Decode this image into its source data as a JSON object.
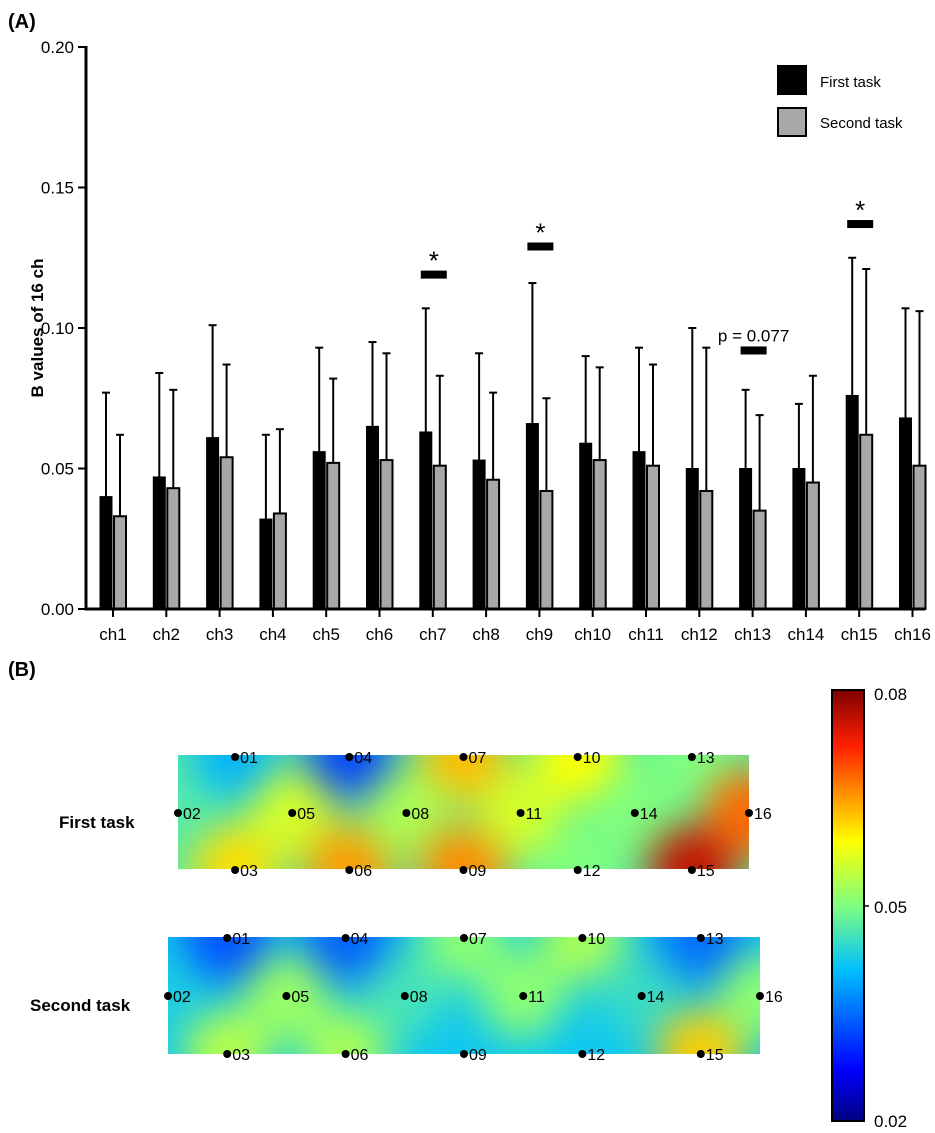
{
  "chart_data": [
    {
      "type": "bar",
      "panel_label": "(A)",
      "ylabel": "B values of 16 ch",
      "ylim": [
        0,
        0.2
      ],
      "yticks": [
        "0.00",
        "0.05",
        "0.10",
        "0.15",
        "0.20"
      ],
      "categories": [
        "ch1",
        "ch2",
        "ch3",
        "ch4",
        "ch5",
        "ch6",
        "ch7",
        "ch8",
        "ch9",
        "ch10",
        "ch11",
        "ch12",
        "ch13",
        "ch14",
        "ch15",
        "ch16"
      ],
      "series": [
        {
          "name": "First task",
          "color": "#000000",
          "values": [
            0.04,
            0.047,
            0.061,
            0.032,
            0.056,
            0.065,
            0.063,
            0.053,
            0.066,
            0.059,
            0.056,
            0.05,
            0.05,
            0.05,
            0.076,
            0.068
          ],
          "errors": [
            0.037,
            0.037,
            0.04,
            0.03,
            0.037,
            0.03,
            0.044,
            0.038,
            0.05,
            0.031,
            0.037,
            0.05,
            0.028,
            0.023,
            0.049,
            0.039
          ]
        },
        {
          "name": "Second task",
          "color": "#a8a8a8",
          "values": [
            0.033,
            0.043,
            0.054,
            0.034,
            0.052,
            0.053,
            0.051,
            0.046,
            0.042,
            0.053,
            0.051,
            0.042,
            0.035,
            0.045,
            0.062,
            0.051
          ],
          "errors": [
            0.029,
            0.035,
            0.033,
            0.03,
            0.03,
            0.038,
            0.032,
            0.031,
            0.033,
            0.033,
            0.036,
            0.051,
            0.034,
            0.038,
            0.059,
            0.055
          ]
        }
      ],
      "significance": [
        {
          "channel": "ch7",
          "label": "*",
          "y": 0.119
        },
        {
          "channel": "ch9",
          "label": "*",
          "y": 0.129
        },
        {
          "channel": "ch13",
          "label": "p = 0.077",
          "y": 0.092
        },
        {
          "channel": "ch15",
          "label": "*",
          "y": 0.137
        }
      ],
      "legend_position": "top-right"
    },
    {
      "type": "heatmap",
      "panel_label": "(B)",
      "rows": [
        "First task",
        "Second task"
      ],
      "channel_labels": [
        "01",
        "02",
        "03",
        "04",
        "05",
        "06",
        "07",
        "08",
        "09",
        "10",
        "11",
        "12",
        "13",
        "14",
        "15",
        "16"
      ],
      "colorbar": {
        "min": 0.02,
        "max": 0.08,
        "ticks": [
          "0.02",
          "0.05",
          "0.08"
        ]
      },
      "values": {
        "First task": [
          0.04,
          0.047,
          0.061,
          0.032,
          0.056,
          0.065,
          0.063,
          0.053,
          0.066,
          0.059,
          0.056,
          0.05,
          0.05,
          0.05,
          0.076,
          0.068
        ],
        "Second task": [
          0.033,
          0.043,
          0.054,
          0.034,
          0.052,
          0.053,
          0.051,
          0.046,
          0.042,
          0.053,
          0.051,
          0.042,
          0.035,
          0.045,
          0.062,
          0.051
        ]
      }
    }
  ]
}
